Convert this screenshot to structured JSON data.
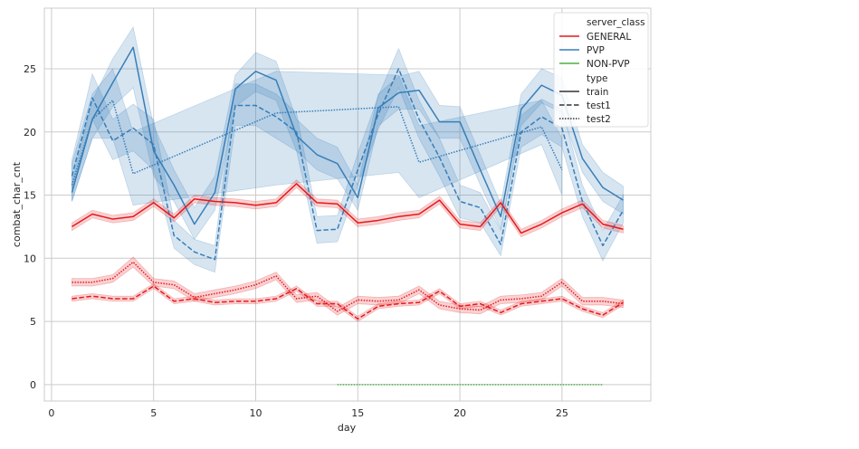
{
  "chart_data": {
    "type": "line",
    "title": "",
    "xlabel": "day",
    "ylabel": "combat_char_cnt",
    "xlim": [
      -0.35,
      29.35
    ],
    "ylim": [
      -1.3,
      29.8
    ],
    "xticks": [
      0,
      5,
      10,
      15,
      20,
      25
    ],
    "yticks": [
      0,
      5,
      10,
      15,
      20,
      25
    ],
    "grid": true,
    "legend": {
      "position": "top-right",
      "hue_title": "server_class",
      "style_title": "type",
      "hue_entries": [
        {
          "label": "GENERAL",
          "color": "#e41a1c"
        },
        {
          "label": "PVP",
          "color": "#377eb8"
        },
        {
          "label": "NON-PVP",
          "color": "#4daf4a"
        }
      ],
      "style_entries": [
        {
          "label": "train",
          "dash": "solid"
        },
        {
          "label": "test1",
          "dash": "dashed"
        },
        {
          "label": "test2",
          "dash": "dotted"
        }
      ]
    },
    "series": [
      {
        "name": "PVP test2",
        "server_class": "PVP",
        "type": "test2",
        "color": "#377eb8",
        "dash": "dotted",
        "x": [
          1,
          2,
          3,
          4,
          11,
          17,
          18,
          24,
          25
        ],
        "y": [
          15.8,
          21.0,
          22.5,
          16.7,
          21.5,
          22.0,
          17.6,
          20.4,
          17.0
        ],
        "ci_low": [
          14.5,
          19.5,
          19.5,
          14.2,
          15.8,
          16.8,
          14.8,
          19.0,
          15.0
        ],
        "ci_high": [
          17.5,
          23.0,
          25.0,
          20.0,
          24.8,
          24.5,
          20.5,
          22.5,
          19.5
        ]
      },
      {
        "name": "PVP test1",
        "server_class": "PVP",
        "type": "test1",
        "color": "#377eb8",
        "dash": "dashed",
        "x": [
          1,
          2,
          3,
          4,
          5,
          6,
          7,
          8,
          9,
          10,
          11,
          12,
          13,
          14,
          15,
          16,
          17,
          18,
          19,
          20,
          21,
          22,
          23,
          24,
          25,
          26,
          27,
          28
        ],
        "y": [
          16.5,
          22.7,
          19.3,
          20.3,
          19.0,
          11.8,
          10.5,
          9.9,
          22.1,
          22.1,
          21.2,
          20.0,
          12.2,
          12.3,
          17.0,
          21.4,
          25.0,
          21.0,
          18.0,
          14.5,
          14.0,
          11.1,
          20.0,
          21.2,
          20.3,
          14.5,
          11.0,
          13.8
        ],
        "ci_low": [
          15.5,
          21.0,
          17.8,
          18.5,
          17.0,
          10.8,
          9.5,
          8.9,
          20.5,
          20.5,
          19.5,
          18.5,
          11.2,
          11.3,
          15.8,
          20.2,
          23.5,
          19.5,
          16.5,
          13.2,
          12.8,
          10.2,
          18.8,
          19.8,
          18.8,
          13.3,
          9.8,
          12.8
        ],
        "ci_high": [
          17.8,
          24.6,
          21.0,
          22.2,
          21.0,
          13.0,
          11.5,
          11.0,
          23.8,
          23.8,
          23.0,
          21.5,
          13.3,
          13.4,
          18.3,
          22.8,
          26.6,
          22.5,
          19.5,
          15.8,
          15.2,
          12.2,
          21.3,
          22.6,
          21.8,
          15.8,
          12.2,
          15.0
        ]
      },
      {
        "name": "PVP train",
        "server_class": "PVP",
        "type": "train",
        "color": "#377eb8",
        "dash": "solid",
        "x": [
          1,
          2,
          3,
          4,
          5,
          6,
          7,
          8,
          9,
          10,
          11,
          12,
          13,
          14,
          15,
          16,
          17,
          18,
          19,
          20,
          21,
          22,
          23,
          24,
          25,
          26,
          27,
          28
        ],
        "y": [
          15.2,
          21.0,
          23.9,
          26.7,
          18.5,
          15.8,
          12.7,
          15.2,
          23.4,
          24.8,
          24.1,
          19.7,
          18.2,
          17.5,
          14.8,
          21.9,
          23.1,
          23.3,
          20.8,
          20.8,
          17.0,
          13.3,
          21.8,
          23.7,
          22.9,
          17.9,
          15.6,
          14.6
        ],
        "ci_low": [
          14.5,
          19.5,
          22.0,
          23.5,
          16.5,
          14.5,
          11.5,
          13.8,
          22.0,
          23.2,
          22.5,
          18.5,
          17.0,
          16.3,
          13.8,
          20.5,
          21.8,
          21.8,
          19.5,
          19.5,
          15.8,
          12.3,
          20.5,
          22.3,
          21.5,
          16.8,
          14.5,
          13.5
        ],
        "ci_high": [
          16.0,
          22.5,
          25.8,
          28.3,
          20.5,
          17.0,
          14.0,
          16.5,
          24.5,
          26.3,
          25.6,
          21.0,
          19.5,
          18.8,
          15.8,
          23.0,
          24.4,
          24.8,
          22.1,
          22.0,
          18.2,
          14.3,
          23.0,
          25.0,
          24.3,
          19.0,
          16.8,
          15.7
        ]
      },
      {
        "name": "GENERAL train",
        "server_class": "GENERAL",
        "type": "train",
        "color": "#e41a1c",
        "dash": "solid",
        "x": [
          1,
          2,
          3,
          4,
          5,
          6,
          7,
          8,
          9,
          10,
          11,
          12,
          13,
          14,
          15,
          16,
          17,
          18,
          19,
          20,
          21,
          22,
          23,
          24,
          25,
          26,
          27,
          28
        ],
        "y": [
          12.5,
          13.5,
          13.1,
          13.3,
          14.4,
          13.2,
          14.7,
          14.5,
          14.4,
          14.2,
          14.4,
          15.9,
          14.4,
          14.3,
          12.8,
          13.0,
          13.3,
          13.5,
          14.6,
          12.7,
          12.5,
          14.4,
          12.0,
          12.7,
          13.6,
          14.3,
          12.7,
          12.3
        ],
        "ci_low": [
          12.2,
          13.2,
          12.8,
          13.0,
          14.1,
          12.9,
          14.4,
          14.2,
          14.1,
          13.9,
          14.1,
          15.6,
          14.1,
          14.0,
          12.5,
          12.7,
          13.0,
          13.2,
          14.3,
          12.4,
          12.2,
          14.1,
          11.7,
          12.4,
          13.3,
          14.0,
          12.4,
          12.0
        ],
        "ci_high": [
          12.8,
          13.8,
          13.4,
          13.6,
          14.7,
          13.5,
          15.0,
          14.8,
          14.7,
          14.5,
          14.7,
          16.2,
          14.7,
          14.6,
          13.1,
          13.3,
          13.6,
          13.8,
          14.9,
          13.0,
          12.8,
          14.7,
          12.3,
          13.0,
          13.9,
          14.6,
          13.0,
          12.6
        ]
      },
      {
        "name": "GENERAL test2",
        "server_class": "GENERAL",
        "type": "test2",
        "color": "#e41a1c",
        "dash": "dotted",
        "x": [
          1,
          2,
          3,
          4,
          5,
          6,
          7,
          8,
          9,
          10,
          11,
          12,
          13,
          14,
          15,
          16,
          17,
          18,
          19,
          20,
          21,
          22,
          23,
          24,
          25,
          26,
          27,
          28
        ],
        "y": [
          8.1,
          8.1,
          8.4,
          9.7,
          8.1,
          7.9,
          6.9,
          7.2,
          7.5,
          7.9,
          8.6,
          6.8,
          7.0,
          5.8,
          6.7,
          6.6,
          6.7,
          7.5,
          6.3,
          6.0,
          5.9,
          6.7,
          6.8,
          7.0,
          8.1,
          6.6,
          6.6,
          6.4
        ],
        "ci_low": [
          7.8,
          7.8,
          8.1,
          9.3,
          7.8,
          7.6,
          6.6,
          6.9,
          7.2,
          7.6,
          8.3,
          6.5,
          6.7,
          5.5,
          6.4,
          6.3,
          6.4,
          7.2,
          6.0,
          5.7,
          5.6,
          6.4,
          6.5,
          6.7,
          7.8,
          6.3,
          6.3,
          6.1
        ],
        "ci_high": [
          8.4,
          8.4,
          8.7,
          10.1,
          8.4,
          8.2,
          7.2,
          7.5,
          7.8,
          8.2,
          8.9,
          7.1,
          7.3,
          6.1,
          7.0,
          6.9,
          7.0,
          7.8,
          6.6,
          6.3,
          6.2,
          7.0,
          7.1,
          7.3,
          8.4,
          6.9,
          6.9,
          6.7
        ]
      },
      {
        "name": "GENERAL test1",
        "server_class": "GENERAL",
        "type": "test1",
        "color": "#e41a1c",
        "dash": "dashed",
        "x": [
          1,
          2,
          3,
          4,
          5,
          6,
          7,
          8,
          9,
          10,
          11,
          12,
          13,
          14,
          15,
          16,
          17,
          18,
          19,
          20,
          21,
          22,
          23,
          24,
          25,
          26,
          27,
          28
        ],
        "y": [
          6.8,
          7.0,
          6.8,
          6.8,
          7.8,
          6.6,
          6.8,
          6.5,
          6.6,
          6.6,
          6.8,
          7.6,
          6.4,
          6.4,
          5.2,
          6.2,
          6.4,
          6.5,
          7.4,
          6.2,
          6.4,
          5.7,
          6.4,
          6.6,
          6.8,
          6.0,
          5.5,
          6.5
        ],
        "ci_low": [
          6.6,
          6.8,
          6.6,
          6.6,
          7.6,
          6.4,
          6.6,
          6.3,
          6.4,
          6.4,
          6.6,
          7.4,
          6.2,
          6.2,
          5.0,
          6.0,
          6.2,
          6.3,
          7.2,
          6.0,
          6.2,
          5.5,
          6.2,
          6.4,
          6.6,
          5.8,
          5.3,
          6.3
        ],
        "ci_high": [
          7.0,
          7.2,
          7.0,
          7.0,
          8.0,
          6.8,
          7.0,
          6.7,
          6.8,
          6.8,
          7.0,
          7.8,
          6.6,
          6.6,
          5.4,
          6.4,
          6.6,
          6.7,
          7.6,
          6.4,
          6.6,
          5.9,
          6.6,
          6.8,
          7.0,
          6.2,
          5.7,
          6.7
        ]
      },
      {
        "name": "NON-PVP test2",
        "server_class": "NON-PVP",
        "type": "test2",
        "color": "#4daf4a",
        "dash": "dotted",
        "x": [
          14,
          15,
          16,
          17,
          18,
          19,
          20,
          21,
          22,
          23,
          24,
          25,
          26,
          27
        ],
        "y": [
          0,
          0,
          0,
          0,
          0,
          0,
          0,
          0,
          0,
          0,
          0,
          0,
          0,
          0
        ]
      }
    ]
  }
}
